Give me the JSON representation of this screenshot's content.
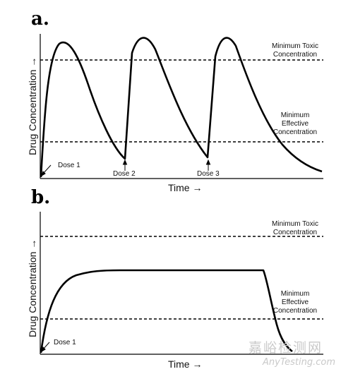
{
  "panel_a": {
    "letter": "a.",
    "ylabel": "Drug Concentration",
    "xlabel": "Time",
    "toxic_label": [
      "Minimum Toxic",
      "Concentration"
    ],
    "effective_label": [
      "Minimum",
      "Effective",
      "Concentration"
    ],
    "doses": [
      "Dose 1",
      "Dose 2",
      "Dose 3"
    ]
  },
  "panel_b": {
    "letter": "b.",
    "ylabel": "Drug Concentration",
    "xlabel": "Time",
    "toxic_label": [
      "Minimum Toxic",
      "Concentration"
    ],
    "effective_label": [
      "Minimum",
      "Effective",
      "Concentration"
    ],
    "doses": [
      "Dose 1"
    ]
  },
  "arrow_glyph": "→",
  "watermark": {
    "chinese": "嘉峪检测网",
    "english": "AnyTesting.com"
  }
}
